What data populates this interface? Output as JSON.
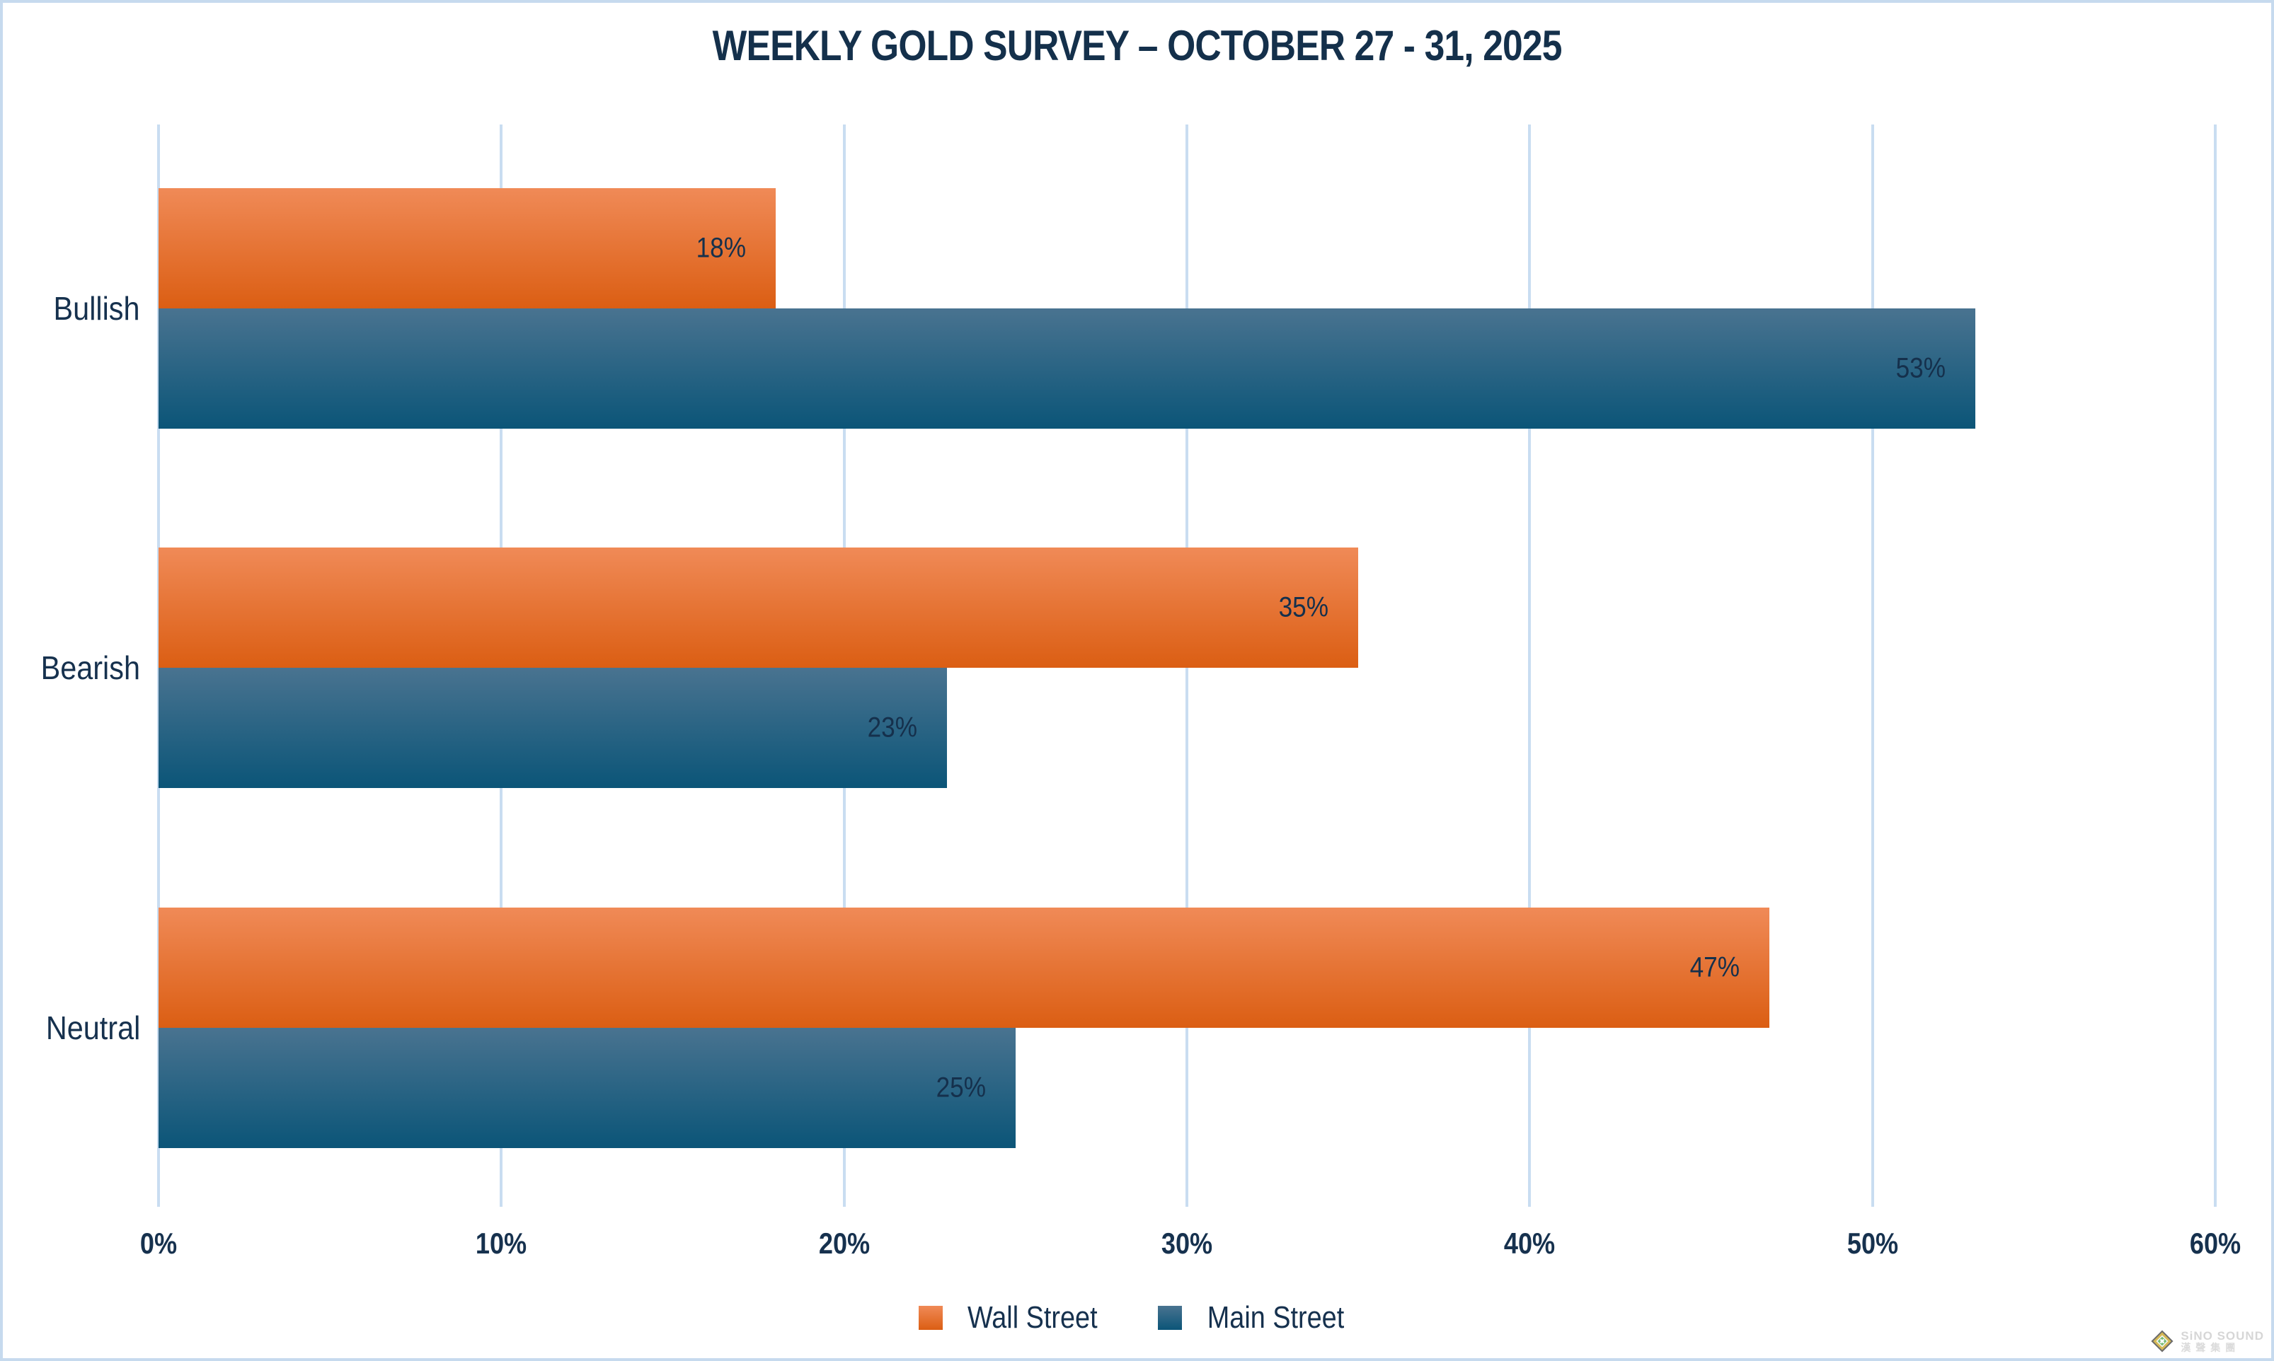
{
  "title": "WEEKLY GOLD SURVEY – OCTOBER 27 - 31, 2025",
  "chart_data": {
    "type": "bar",
    "orientation": "horizontal",
    "title": "WEEKLY GOLD SURVEY – OCTOBER 27 - 31, 2025",
    "categories": [
      "Bullish",
      "Bearish",
      "Neutral"
    ],
    "series": [
      {
        "name": "Wall Street",
        "values": [
          18,
          35,
          47
        ],
        "color_top": "#F08A57",
        "color_bottom": "#DB5E13"
      },
      {
        "name": "Main Street",
        "values": [
          53,
          23,
          25
        ],
        "color_top": "#497390",
        "color_bottom": "#0B5578"
      }
    ],
    "value_suffix": "%",
    "x_ticks": [
      "0%",
      "10%",
      "20%",
      "30%",
      "40%",
      "50%",
      "60%"
    ],
    "xlim": [
      0,
      60
    ],
    "grid": true,
    "legend_position": "bottom"
  },
  "colors": {
    "text": "#16314E",
    "gridline": "#C9DDF1",
    "frame_border": "#C6DAEE",
    "background": "#FFFFFF"
  },
  "watermark": {
    "line1": "SiNO SOUND",
    "line2": "漢聲集團"
  }
}
